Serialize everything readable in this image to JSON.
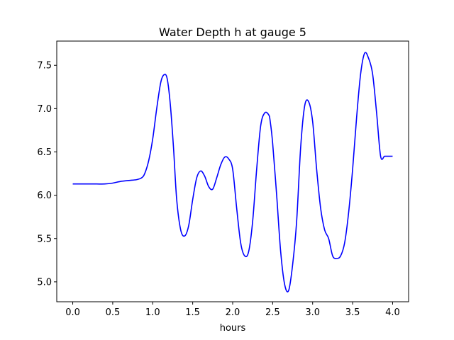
{
  "chart_data": {
    "type": "line",
    "title": "Water Depth h at gauge 5",
    "xlabel": "hours",
    "ylabel": "",
    "xlim": [
      -0.2,
      4.2
    ],
    "ylim": [
      4.77,
      7.78
    ],
    "xticks": [
      0.0,
      0.5,
      1.0,
      1.5,
      2.0,
      2.5,
      3.0,
      3.5,
      4.0
    ],
    "xtick_labels": [
      "0.0",
      "0.5",
      "1.0",
      "1.5",
      "2.0",
      "2.5",
      "3.0",
      "3.5",
      "4.0"
    ],
    "yticks": [
      5.0,
      5.5,
      6.0,
      6.5,
      7.0,
      7.5
    ],
    "ytick_labels": [
      "5.0",
      "5.5",
      "6.0",
      "6.5",
      "7.0",
      "7.5"
    ],
    "grid": false,
    "colors": {
      "line": "#0000ff"
    },
    "series": [
      {
        "x": [
          0.0,
          0.1,
          0.2,
          0.3,
          0.4,
          0.5,
          0.6,
          0.7,
          0.8,
          0.86,
          0.9,
          0.95,
          1.0,
          1.05,
          1.1,
          1.14,
          1.18,
          1.22,
          1.26,
          1.3,
          1.35,
          1.4,
          1.45,
          1.5,
          1.55,
          1.6,
          1.65,
          1.7,
          1.75,
          1.8,
          1.85,
          1.9,
          1.95,
          2.0,
          2.05,
          2.1,
          2.15,
          2.2,
          2.25,
          2.3,
          2.35,
          2.4,
          2.45,
          2.47,
          2.5,
          2.55,
          2.6,
          2.65,
          2.7,
          2.75,
          2.8,
          2.85,
          2.9,
          2.95,
          3.0,
          3.05,
          3.1,
          3.15,
          3.2,
          3.25,
          3.3,
          3.35,
          3.4,
          3.45,
          3.5,
          3.55,
          3.6,
          3.65,
          3.7,
          3.75,
          3.8,
          3.85,
          3.9,
          3.95,
          4.0
        ],
        "y": [
          6.13,
          6.13,
          6.13,
          6.13,
          6.13,
          6.14,
          6.16,
          6.17,
          6.18,
          6.2,
          6.25,
          6.4,
          6.65,
          7.0,
          7.3,
          7.39,
          7.35,
          7.05,
          6.55,
          5.95,
          5.6,
          5.53,
          5.65,
          5.95,
          6.2,
          6.28,
          6.22,
          6.1,
          6.07,
          6.2,
          6.35,
          6.44,
          6.42,
          6.3,
          5.85,
          5.45,
          5.3,
          5.35,
          5.7,
          6.3,
          6.8,
          6.95,
          6.93,
          6.85,
          6.6,
          6.0,
          5.35,
          4.97,
          4.9,
          5.2,
          5.7,
          6.55,
          7.03,
          7.08,
          6.85,
          6.3,
          5.85,
          5.6,
          5.5,
          5.3,
          5.27,
          5.3,
          5.45,
          5.8,
          6.3,
          6.9,
          7.4,
          7.64,
          7.58,
          7.4,
          6.95,
          6.45,
          6.45,
          6.45,
          6.45
        ]
      }
    ]
  }
}
